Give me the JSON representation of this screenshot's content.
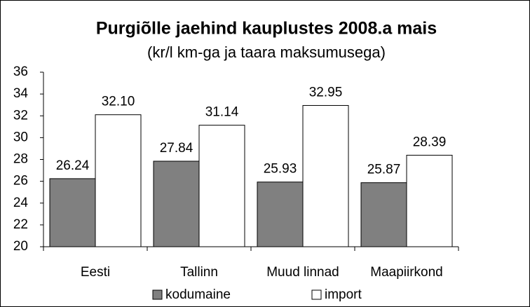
{
  "chart_data": {
    "type": "bar",
    "title": "Purgiõlle jaehind kauplustes 2008.a mais",
    "subtitle": "(kr/l km-ga ja taara maksumusega)",
    "categories": [
      "Eesti",
      "Tallinn",
      "Muud linnad",
      "Maapiirkond"
    ],
    "series": [
      {
        "name": "kodumaine",
        "color": "#808080",
        "values": [
          26.24,
          27.84,
          25.93,
          25.87
        ],
        "value_labels": [
          "26.24",
          "27.84",
          "25.93",
          "25.87"
        ]
      },
      {
        "name": "import",
        "color": "#ffffff",
        "values": [
          32.1,
          31.14,
          32.95,
          28.39
        ],
        "value_labels": [
          "32.10",
          "31.14",
          "32.95",
          "28.39"
        ]
      }
    ],
    "ylim": [
      20,
      36
    ],
    "yticks": [
      20,
      22,
      24,
      26,
      28,
      30,
      32,
      34,
      36
    ],
    "legend": "bottom"
  }
}
